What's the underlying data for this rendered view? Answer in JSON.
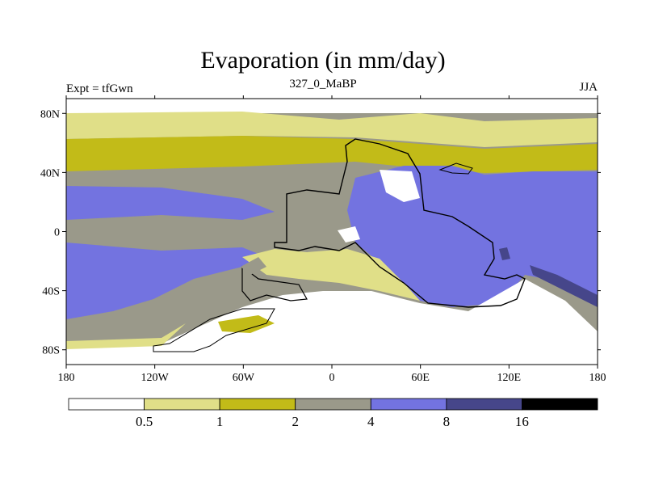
{
  "title": "Evaporation (in mm/day)",
  "subtitle_left": "Expt = tfGwn",
  "subtitle_center": "327_0_MaBP",
  "subtitle_right": "JJA",
  "y_ticks": [
    "80N",
    "40N",
    "0",
    "40S",
    "80S"
  ],
  "x_ticks": [
    "180",
    "120W",
    "60W",
    "0",
    "60E",
    "120E",
    "180"
  ],
  "colorbar": {
    "levels": [
      "0.5",
      "1",
      "2",
      "4",
      "8",
      "16"
    ],
    "colors": [
      "#ffffff",
      "#e0df88",
      "#c2bb18",
      "#9a998a",
      "#7373e0",
      "#46468a",
      "#000000"
    ]
  }
}
